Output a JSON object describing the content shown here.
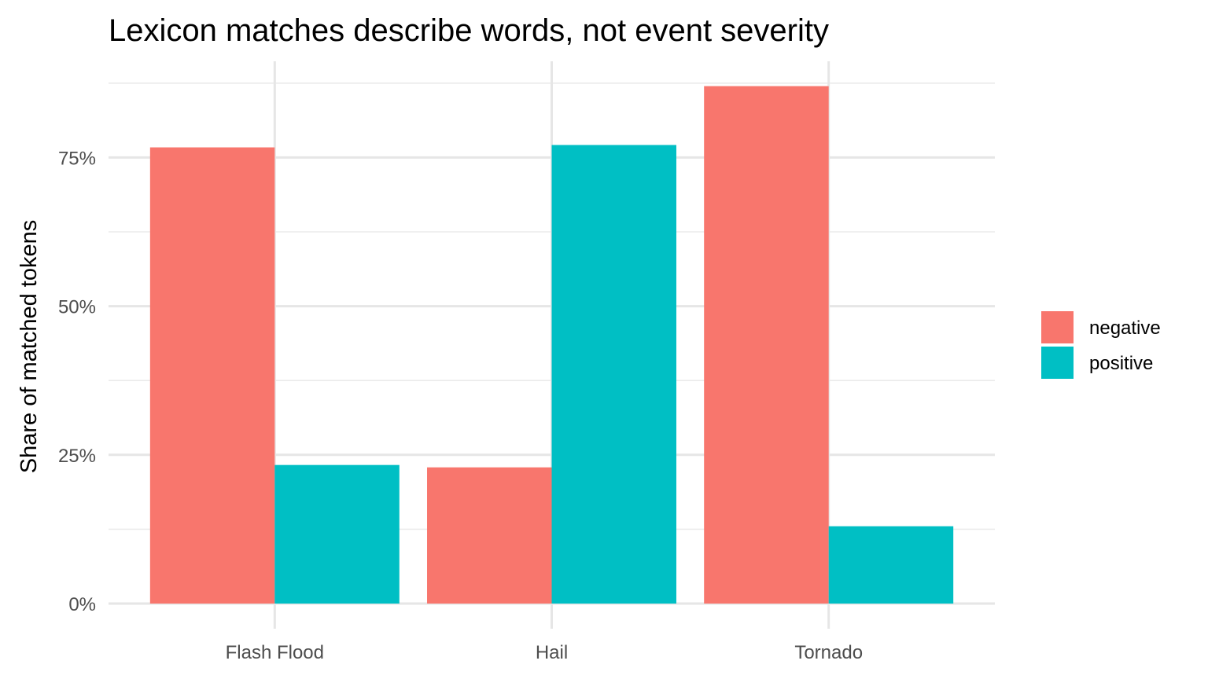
{
  "chart_data": {
    "type": "bar",
    "title": "Lexicon matches describe words, not event severity",
    "xlabel": "",
    "ylabel": "Share of matched tokens",
    "categories": [
      "Flash Flood",
      "Hail",
      "Tornado"
    ],
    "series": [
      {
        "name": "negative",
        "color": "#F8766D",
        "values": [
          0.767,
          0.229,
          0.87
        ]
      },
      {
        "name": "positive",
        "color": "#00BFC4",
        "values": [
          0.233,
          0.771,
          0.13
        ]
      }
    ],
    "ylim": [
      0,
      0.88
    ],
    "yticks": [
      0,
      0.25,
      0.5,
      0.75
    ],
    "ytick_labels": [
      "0%",
      "25%",
      "50%",
      "75%"
    ],
    "grid": true,
    "legend_position": "right"
  }
}
